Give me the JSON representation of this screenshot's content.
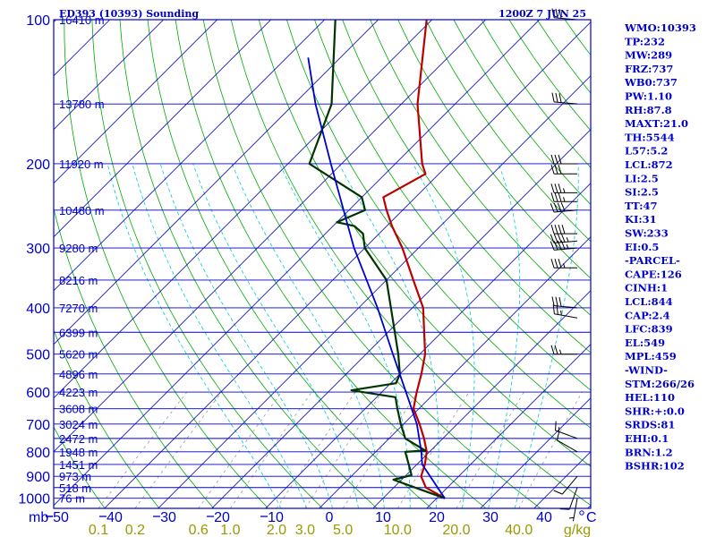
{
  "header": {
    "title": "ED393 (10393) Sounding",
    "time": "1200Z  7 JUN 25"
  },
  "chart_data": {
    "type": "line",
    "subtype": "skew-t log-p sounding",
    "x_unit": "°C",
    "y_unit": "mb",
    "pressure_levels": [
      100,
      200,
      300,
      400,
      500,
      600,
      700,
      800,
      900,
      1000
    ],
    "pressure_range": [
      100,
      1050
    ],
    "temperature_ticks": [
      -50,
      -40,
      -30,
      -20,
      -10,
      0,
      10,
      20,
      30,
      40
    ],
    "temperature_tick_labels": [
      "50",
      "40",
      "30",
      "20",
      "10",
      "0",
      "10",
      "20",
      "30",
      "40"
    ],
    "isotherm_range": [
      -140,
      50
    ],
    "dry_adiabat_thetas_k": [
      230,
      240,
      250,
      260,
      270,
      280,
      290,
      300,
      310,
      320,
      330,
      340,
      350,
      360,
      370,
      380,
      390,
      400,
      410,
      420,
      430,
      440,
      450,
      460,
      470,
      480
    ],
    "mixing_ratio_lines_gkg": [
      0.1,
      0.2,
      0.6,
      1.0,
      2.0,
      3.0,
      5.0,
      10.0,
      20.0,
      40.0
    ],
    "mixing_ratio_labels": [
      "0.1",
      "0.2",
      "0.6",
      "1.0",
      "2.0",
      "3.0",
      "5.0",
      "10.0",
      "20.0",
      "40.0"
    ],
    "mixing_ratio_unit": "g/kg",
    "moist_adiabat_thetaw_c": [
      -10,
      -5,
      0,
      5,
      10,
      15,
      20,
      25,
      30,
      35
    ],
    "height_labels": [
      {
        "p": 100,
        "text": "16410 m"
      },
      {
        "p": 150,
        "text": "13780 m"
      },
      {
        "p": 200,
        "text": "11920 m"
      },
      {
        "p": 250,
        "text": "10480 m"
      },
      {
        "p": 300,
        "text": "9280 m"
      },
      {
        "p": 350,
        "text": "8216 m"
      },
      {
        "p": 400,
        "text": "7270 m"
      },
      {
        "p": 450,
        "text": "6399 m"
      },
      {
        "p": 500,
        "text": "5620 m"
      },
      {
        "p": 550,
        "text": "4896 m"
      },
      {
        "p": 600,
        "text": "4223 m"
      },
      {
        "p": 650,
        "text": "3608 m"
      },
      {
        "p": 700,
        "text": "3024 m"
      },
      {
        "p": 750,
        "text": "2472 m"
      },
      {
        "p": 800,
        "text": "1948 m"
      },
      {
        "p": 850,
        "text": "1451 m"
      },
      {
        "p": 900,
        "text": "973 m"
      },
      {
        "p": 950,
        "text": "518 m"
      },
      {
        "p": 1000,
        "text": "76 m"
      }
    ],
    "series": [
      {
        "color": "#bb0000",
        "points": [
          {
            "p": 1000,
            "t": 21.5
          },
          {
            "p": 950,
            "t": 16
          },
          {
            "p": 900,
            "t": 13
          },
          {
            "p": 850,
            "t": 11.5
          },
          {
            "p": 800,
            "t": 9.5
          },
          {
            "p": 750,
            "t": 6.5
          },
          {
            "p": 700,
            "t": 3
          },
          {
            "p": 650,
            "t": -1
          },
          {
            "p": 600,
            "t": -3.5
          },
          {
            "p": 550,
            "t": -6
          },
          {
            "p": 500,
            "t": -9
          },
          {
            "p": 400,
            "t": -18
          },
          {
            "p": 350,
            "t": -25
          },
          {
            "p": 300,
            "t": -33
          },
          {
            "p": 270,
            "t": -39
          },
          {
            "p": 250,
            "t": -43
          },
          {
            "p": 235,
            "t": -46
          },
          {
            "p": 210,
            "t": -42.5
          },
          {
            "p": 200,
            "t": -45
          },
          {
            "p": 150,
            "t": -57
          },
          {
            "p": 100,
            "t": -71
          }
        ]
      },
      {
        "color": "#003300",
        "points": [
          {
            "p": 1000,
            "t": 21.5
          },
          {
            "p": 950,
            "t": 14
          },
          {
            "p": 915,
            "t": 8.5
          },
          {
            "p": 895,
            "t": 11
          },
          {
            "p": 850,
            "t": 8.5
          },
          {
            "p": 800,
            "t": 5.5
          },
          {
            "p": 795,
            "t": 9
          },
          {
            "p": 750,
            "t": 3
          },
          {
            "p": 700,
            "t": -0.5
          },
          {
            "p": 650,
            "t": -4
          },
          {
            "p": 615,
            "t": -6.5
          },
          {
            "p": 595,
            "t": -16
          },
          {
            "p": 575,
            "t": -9
          },
          {
            "p": 550,
            "t": -10
          },
          {
            "p": 500,
            "t": -14
          },
          {
            "p": 400,
            "t": -24
          },
          {
            "p": 350,
            "t": -30
          },
          {
            "p": 300,
            "t": -40
          },
          {
            "p": 280,
            "t": -43
          },
          {
            "p": 270,
            "t": -46
          },
          {
            "p": 265,
            "t": -50
          },
          {
            "p": 250,
            "t": -47
          },
          {
            "p": 235,
            "t": -50
          },
          {
            "p": 200,
            "t": -66
          },
          {
            "p": 150,
            "t": -73
          },
          {
            "p": 100,
            "t": -88
          }
        ]
      },
      {
        "color": "#0000cc",
        "points": [
          {
            "p": 1000,
            "t": 21.5
          },
          {
            "p": 850,
            "t": 11
          },
          {
            "p": 800,
            "t": 8.5
          },
          {
            "p": 700,
            "t": 2.5
          },
          {
            "p": 600,
            "t": -5.5
          },
          {
            "p": 500,
            "t": -15
          },
          {
            "p": 400,
            "t": -26.5
          },
          {
            "p": 300,
            "t": -42
          },
          {
            "p": 250,
            "t": -51
          },
          {
            "p": 200,
            "t": -62
          },
          {
            "p": 150,
            "t": -76
          },
          {
            "p": 120,
            "t": -86
          }
        ]
      }
    ],
    "wind_barbs": [
      {
        "p": 1000,
        "dir": 190,
        "spd": 5
      },
      {
        "p": 950,
        "dir": 200,
        "spd": 10
      },
      {
        "p": 900,
        "dir": 220,
        "spd": 10
      },
      {
        "p": 800,
        "dir": 300,
        "spd": 10
      },
      {
        "p": 750,
        "dir": 290,
        "spd": 15
      },
      {
        "p": 500,
        "dir": 270,
        "spd": 25
      },
      {
        "p": 420,
        "dir": 280,
        "spd": 25
      },
      {
        "p": 400,
        "dir": 275,
        "spd": 30
      },
      {
        "p": 330,
        "dir": 270,
        "spd": 35
      },
      {
        "p": 300,
        "dir": 265,
        "spd": 45
      },
      {
        "p": 290,
        "dir": 265,
        "spd": 45
      },
      {
        "p": 280,
        "dir": 270,
        "spd": 40
      },
      {
        "p": 250,
        "dir": 265,
        "spd": 40
      },
      {
        "p": 240,
        "dir": 270,
        "spd": 35
      },
      {
        "p": 230,
        "dir": 270,
        "spd": 35
      },
      {
        "p": 210,
        "dir": 270,
        "spd": 30
      },
      {
        "p": 200,
        "dir": 270,
        "spd": 30
      },
      {
        "p": 150,
        "dir": 275,
        "spd": 30
      },
      {
        "p": 100,
        "dir": 275,
        "spd": 30
      }
    ]
  },
  "indices": [
    "WMO:10393",
    "TP:232",
    "MW:289",
    "FRZ:737",
    "WB0:737",
    "PW:1.10",
    "RH:87.8",
    "MAXT:21.0",
    "TH:5544",
    "L57:5.2",
    "LCL:872",
    "LI:2.5",
    "SI:2.5",
    "TT:47",
    "KI:31",
    "SW:233",
    "EI:0.5",
    "-PARCEL-",
    "CAPE:126",
    "CINH:1",
    "LCL:844",
    "CAP:2.4",
    "LFC:839",
    "EL:549",
    "MPL:459",
    "-WIND-",
    "STM:266/26",
    "HEL:110",
    "SHR:+:0.0",
    "SRDS:81",
    "EHI:0.1",
    "BRN:1.2",
    "BSHR:102"
  ],
  "axis_titles": {
    "p_unit": "mb",
    "t_unit": "C",
    "w_unit": "g/kg"
  },
  "colors": {
    "frame": "#0000cc",
    "isobar": "#0000cc",
    "isotherm": "#0000cc",
    "dry_adiabat": "#00aa00",
    "moist_adiabat": "#00cccc",
    "mixing_ratio": "#999999",
    "temperature": "#bb0000",
    "dewpoint": "#003300",
    "parcel": "#0000cc",
    "wind_barb": "#000000"
  }
}
